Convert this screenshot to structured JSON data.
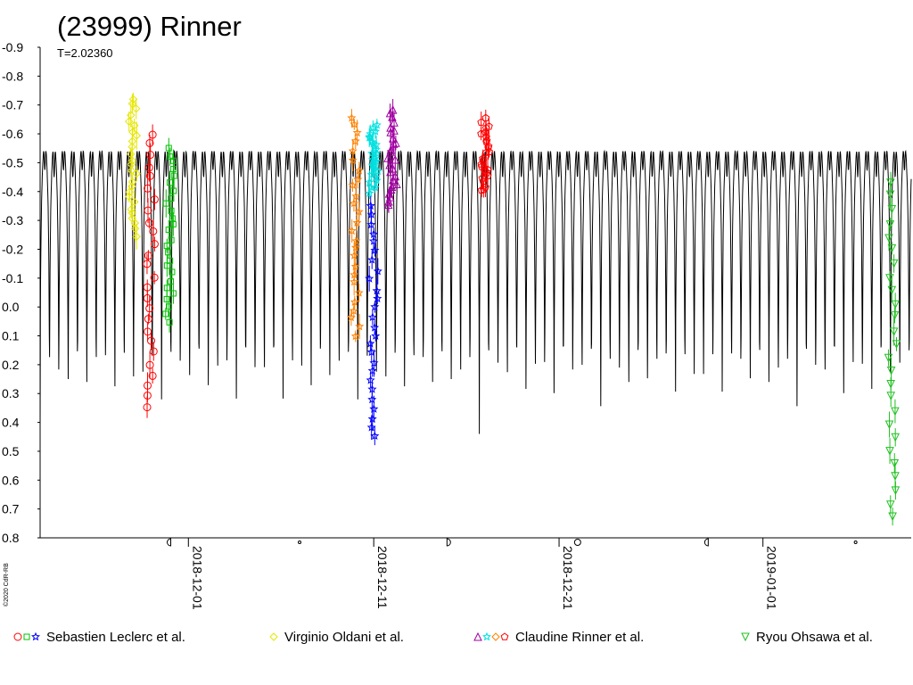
{
  "chart_data": {
    "type": "scatter",
    "title": "(23999) Rinner",
    "subtitle": "T=2.02360",
    "credit": "©2020 CdR-RB",
    "xlabel": "",
    "ylabel": "",
    "x_type": "date",
    "x_range": [
      "2018-11-23",
      "2019-01-09"
    ],
    "y_range": [
      -0.9,
      0.8
    ],
    "y_inverted": true,
    "grid": false,
    "y_ticks": [
      "-0.9",
      "-0.8",
      "-0.7",
      "-0.6",
      "-0.5",
      "-0.4",
      "-0.3",
      "-0.2",
      "-0.1",
      "0.0",
      "0.1",
      "0.2",
      "0.3",
      "0.4",
      "0.5",
      "0.6",
      "0.7",
      "0.8"
    ],
    "x_ticks": [
      {
        "date": "2018-12-01",
        "label": "2018-12-01"
      },
      {
        "date": "2018-12-11",
        "label": "2018-12-11"
      },
      {
        "date": "2018-12-21",
        "label": "2018-12-21"
      },
      {
        "date": "2019-01-01",
        "label": "2019-01-01"
      }
    ],
    "moon_phase_dates": [
      "2018-11-30",
      "2018-12-07",
      "2018-12-15",
      "2018-12-22",
      "2018-12-29",
      "2019-01-06"
    ],
    "model_curve": {
      "period_hours": 24.2,
      "max_mag": 0.32,
      "min_mag": -0.57,
      "color": "#000000"
    },
    "legend_placement": "bottom",
    "legend": [
      {
        "name": "Sebastien Leclerc et al.",
        "markers": [
          "circle",
          "square",
          "star"
        ],
        "colors": [
          "#ff0000",
          "#00c000",
          "#0000ff"
        ]
      },
      {
        "name": "Virginio Oldani et al.",
        "markers": [
          "diamond"
        ],
        "colors": [
          "#e6e600"
        ]
      },
      {
        "name": "Claudine Rinner et al.",
        "markers": [
          "triangle",
          "star",
          "diamond",
          "pentagon"
        ],
        "colors": [
          "#a000a0",
          "#00e0e0",
          "#ff8000",
          "#ff0000"
        ]
      },
      {
        "name": "Ryou Ohsawa et al.",
        "markers": [
          "triangle-down"
        ],
        "colors": [
          "#20c020"
        ]
      }
    ],
    "series": [
      {
        "color": "#e6e600",
        "marker": "diamond",
        "x": "2018-11-28",
        "mag_range": [
          -0.72,
          -0.25
        ]
      },
      {
        "color": "#ff0000",
        "marker": "circle",
        "x": "2018-11-29",
        "mag_range": [
          -0.6,
          0.35
        ]
      },
      {
        "color": "#00c000",
        "marker": "square",
        "x": "2018-11-30",
        "mag_range": [
          -0.55,
          0.05
        ]
      },
      {
        "color": "#ff8000",
        "marker": "star",
        "x": "2018-12-10",
        "mag_range": [
          -0.66,
          0.1
        ]
      },
      {
        "color": "#0000ff",
        "marker": "star",
        "x": "2018-12-11",
        "mag_range": [
          -0.35,
          0.45
        ]
      },
      {
        "color": "#00e0e0",
        "marker": "star",
        "x": "2018-12-11",
        "mag_range": [
          -0.63,
          -0.4
        ]
      },
      {
        "color": "#a000a0",
        "marker": "triangle",
        "x": "2018-12-12",
        "mag_range": [
          -0.68,
          -0.35
        ]
      },
      {
        "color": "#ff0000",
        "marker": "pentagon",
        "x": "2018-12-17",
        "mag_range": [
          -0.65,
          -0.4
        ]
      },
      {
        "color": "#20c020",
        "marker": "triangle-down",
        "x": "2019-01-08",
        "mag_range": [
          -0.43,
          0.73
        ]
      }
    ]
  }
}
